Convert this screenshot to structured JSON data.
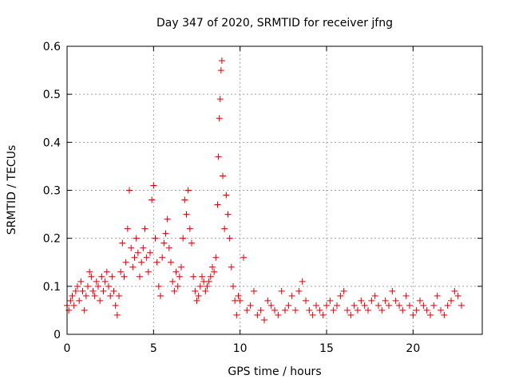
{
  "colors": {
    "series": "#dd0000",
    "axis": "#000000",
    "grid": "#a0a0a0",
    "background": "#ffffff"
  },
  "chart_data": {
    "type": "scatter",
    "title": "Day 347 of 2020, SRMTID for receiver jfng",
    "xlabel": "GPS time / hours",
    "ylabel": "SRMTID / TECUs",
    "xlim": [
      0,
      24
    ],
    "ylim": [
      0,
      0.6
    ],
    "xticks": [
      0,
      5,
      10,
      15,
      20
    ],
    "yticks": [
      0,
      0.1,
      0.2,
      0.3,
      0.4,
      0.5,
      0.6
    ],
    "xtick_labels": [
      "0",
      "5",
      "10",
      "15",
      "20"
    ],
    "ytick_labels": [
      "0",
      "0.1",
      "0.2",
      "0.3",
      "0.4",
      "0.5",
      "0.6"
    ],
    "grid": true,
    "legend": "none",
    "marker": "plus",
    "series": [
      {
        "name": "SRMTID",
        "x": [
          0.0,
          0.1,
          0.2,
          0.3,
          0.4,
          0.5,
          0.6,
          0.7,
          0.8,
          0.9,
          1.0,
          1.1,
          1.2,
          1.3,
          1.4,
          1.5,
          1.6,
          1.7,
          1.8,
          1.9,
          2.0,
          2.1,
          2.2,
          2.3,
          2.4,
          2.5,
          2.6,
          2.7,
          2.8,
          2.9,
          3.0,
          3.1,
          3.2,
          3.3,
          3.4,
          3.5,
          3.6,
          3.7,
          3.8,
          3.9,
          4.0,
          4.1,
          4.2,
          4.3,
          4.4,
          4.5,
          4.6,
          4.7,
          4.8,
          4.9,
          5.0,
          5.1,
          5.2,
          5.3,
          5.4,
          5.5,
          5.6,
          5.7,
          5.8,
          5.9,
          6.0,
          6.1,
          6.2,
          6.3,
          6.4,
          6.5,
          6.6,
          6.7,
          6.8,
          6.9,
          7.0,
          7.1,
          7.2,
          7.3,
          7.4,
          7.5,
          7.6,
          7.7,
          7.8,
          7.9,
          8.0,
          8.1,
          8.2,
          8.3,
          8.4,
          8.5,
          8.6,
          8.7,
          8.75,
          8.8,
          8.85,
          8.9,
          8.95,
          9.0,
          9.1,
          9.2,
          9.3,
          9.4,
          9.5,
          9.6,
          9.7,
          9.8,
          9.9,
          10.0,
          10.2,
          10.4,
          10.6,
          10.8,
          11.0,
          11.2,
          11.4,
          11.6,
          11.8,
          12.0,
          12.2,
          12.4,
          12.6,
          12.8,
          13.0,
          13.2,
          13.4,
          13.6,
          13.8,
          14.0,
          14.2,
          14.4,
          14.6,
          14.8,
          15.0,
          15.2,
          15.4,
          15.6,
          15.8,
          16.0,
          16.2,
          16.4,
          16.6,
          16.8,
          17.0,
          17.2,
          17.4,
          17.6,
          17.8,
          18.0,
          18.2,
          18.4,
          18.6,
          18.8,
          19.0,
          19.2,
          19.4,
          19.6,
          19.8,
          20.0,
          20.2,
          20.4,
          20.6,
          20.8,
          21.0,
          21.2,
          21.4,
          21.6,
          21.8,
          22.0,
          22.2,
          22.4,
          22.6,
          22.8
        ],
        "y": [
          0.06,
          0.05,
          0.07,
          0.08,
          0.06,
          0.09,
          0.1,
          0.07,
          0.11,
          0.09,
          0.05,
          0.08,
          0.1,
          0.13,
          0.12,
          0.09,
          0.08,
          0.11,
          0.1,
          0.07,
          0.12,
          0.09,
          0.11,
          0.13,
          0.1,
          0.08,
          0.12,
          0.09,
          0.06,
          0.04,
          0.08,
          0.13,
          0.19,
          0.12,
          0.15,
          0.22,
          0.3,
          0.18,
          0.14,
          0.16,
          0.2,
          0.17,
          0.12,
          0.15,
          0.18,
          0.22,
          0.16,
          0.13,
          0.17,
          0.28,
          0.31,
          0.2,
          0.15,
          0.1,
          0.08,
          0.16,
          0.19,
          0.21,
          0.24,
          0.18,
          0.15,
          0.11,
          0.09,
          0.13,
          0.1,
          0.12,
          0.14,
          0.2,
          0.28,
          0.25,
          0.3,
          0.22,
          0.19,
          0.12,
          0.09,
          0.07,
          0.08,
          0.1,
          0.12,
          0.11,
          0.09,
          0.1,
          0.11,
          0.12,
          0.14,
          0.13,
          0.16,
          0.27,
          0.37,
          0.45,
          0.49,
          0.55,
          0.57,
          0.33,
          0.22,
          0.29,
          0.25,
          0.2,
          0.14,
          0.1,
          0.07,
          0.04,
          0.08,
          0.07,
          0.16,
          0.05,
          0.06,
          0.09,
          0.04,
          0.05,
          0.03,
          0.07,
          0.06,
          0.05,
          0.04,
          0.09,
          0.05,
          0.06,
          0.08,
          0.05,
          0.09,
          0.11,
          0.07,
          0.05,
          0.04,
          0.06,
          0.05,
          0.04,
          0.06,
          0.07,
          0.05,
          0.06,
          0.08,
          0.09,
          0.05,
          0.04,
          0.06,
          0.05,
          0.07,
          0.06,
          0.05,
          0.07,
          0.08,
          0.06,
          0.05,
          0.07,
          0.06,
          0.09,
          0.07,
          0.06,
          0.05,
          0.08,
          0.06,
          0.04,
          0.05,
          0.07,
          0.06,
          0.05,
          0.04,
          0.06,
          0.08,
          0.05,
          0.04,
          0.06,
          0.07,
          0.09,
          0.08,
          0.06
        ]
      }
    ]
  }
}
